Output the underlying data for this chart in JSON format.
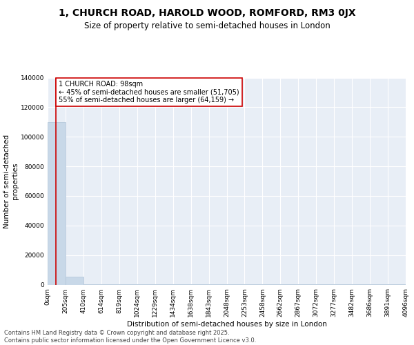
{
  "title": "1, CHURCH ROAD, HAROLD WOOD, ROMFORD, RM3 0JX",
  "subtitle": "Size of property relative to semi-detached houses in London",
  "xlabel": "Distribution of semi-detached houses by size in London",
  "ylabel": "Number of semi-detached\nproperties",
  "bar_color": "#c8d8e8",
  "bar_edge_color": "#b0c4d8",
  "background_color": "#e8eef6",
  "grid_color": "#ffffff",
  "annotation_box_color": "#ffffff",
  "annotation_border_color": "#cc0000",
  "property_line_color": "#cc0000",
  "annotation_text": "1 CHURCH ROAD: 98sqm\n← 45% of semi-detached houses are smaller (51,705)\n55% of semi-detached houses are larger (64,159) →",
  "property_size_bin": 0.478,
  "bin_heights": [
    110000,
    5500,
    400,
    120,
    60,
    30,
    20,
    15,
    10,
    8,
    6,
    5,
    4,
    3,
    2,
    2,
    1,
    1,
    1,
    1
  ],
  "n_bins": 20,
  "ylim": [
    0,
    140000
  ],
  "yticks": [
    0,
    20000,
    40000,
    60000,
    80000,
    100000,
    120000,
    140000
  ],
  "tick_labels": [
    "0sqm",
    "205sqm",
    "410sqm",
    "614sqm",
    "819sqm",
    "1024sqm",
    "1229sqm",
    "1434sqm",
    "1638sqm",
    "1843sqm",
    "2048sqm",
    "2253sqm",
    "2458sqm",
    "2662sqm",
    "2867sqm",
    "3072sqm",
    "3277sqm",
    "3482sqm",
    "3686sqm",
    "3891sqm",
    "4096sqm"
  ],
  "footer": "Contains HM Land Registry data © Crown copyright and database right 2025.\nContains public sector information licensed under the Open Government Licence v3.0.",
  "title_fontsize": 10,
  "subtitle_fontsize": 8.5,
  "axis_label_fontsize": 7.5,
  "tick_fontsize": 6.5,
  "annotation_fontsize": 7,
  "footer_fontsize": 6
}
